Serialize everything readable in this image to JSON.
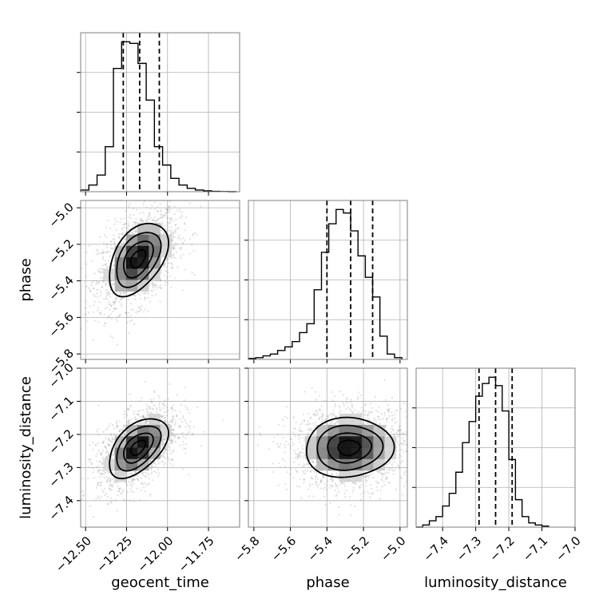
{
  "chart_data": {
    "type": "corner",
    "parameters": [
      "geocent_time",
      "phase",
      "luminosity_distance"
    ],
    "axes": {
      "geocent_time": {
        "label": "geocent_time",
        "range": [
          -12.53,
          -11.56
        ],
        "ticks": [
          -12.5,
          -12.25,
          -12.0,
          -11.75
        ],
        "tick_labels": [
          "−12.50",
          "−12.25",
          "−12.00",
          "−11.75"
        ]
      },
      "phase": {
        "label": "phase",
        "range": [
          -5.83,
          -4.96
        ],
        "ticks": [
          -5.8,
          -5.6,
          -5.4,
          -5.2,
          -5.0
        ],
        "tick_labels": [
          "−5.8",
          "−5.6",
          "−5.4",
          "−5.2",
          "−5.0"
        ]
      },
      "luminosity_distance": {
        "label": "luminosity_distance",
        "range": [
          -7.48,
          -7.0
        ],
        "ticks": [
          -7.4,
          -7.3,
          -7.2,
          -7.1,
          -7.0
        ],
        "tick_labels": [
          "−7.4",
          "−7.3",
          "−7.2",
          "−7.1",
          "−7.0"
        ]
      }
    },
    "histograms": [
      {
        "param": "geocent_time",
        "edges": [
          -12.53,
          -12.48,
          -12.43,
          -12.38,
          -12.33,
          -12.28,
          -12.23,
          -12.18,
          -12.13,
          -12.08,
          -12.03,
          -11.98,
          -11.93,
          -11.88,
          -11.83,
          -11.78,
          -11.73,
          -11.68,
          -11.63,
          -11.58
        ],
        "counts": [
          1,
          4,
          10,
          27,
          74,
          90,
          89,
          77,
          55,
          27,
          16,
          8,
          4,
          2,
          1,
          0.5,
          0.2,
          0.1,
          0
        ],
        "quantiles": [
          -12.27,
          -12.17,
          -12.05
        ]
      },
      {
        "param": "phase",
        "edges": [
          -5.83,
          -5.79,
          -5.75,
          -5.71,
          -5.67,
          -5.63,
          -5.59,
          -5.55,
          -5.51,
          -5.47,
          -5.43,
          -5.39,
          -5.35,
          -5.31,
          -5.27,
          -5.23,
          -5.19,
          -5.15,
          -5.11,
          -5.07,
          -5.03,
          -4.99
        ],
        "counts": [
          0.5,
          1,
          2,
          3,
          5,
          7,
          10,
          15,
          20,
          39,
          60,
          76,
          84,
          82,
          72,
          58,
          46,
          35,
          13,
          3,
          1
        ],
        "quantiles": [
          -5.4,
          -5.27,
          -5.15
        ]
      },
      {
        "param": "luminosity_distance",
        "edges": [
          -7.48,
          -7.46,
          -7.44,
          -7.42,
          -7.4,
          -7.38,
          -7.36,
          -7.34,
          -7.32,
          -7.3,
          -7.28,
          -7.26,
          -7.24,
          -7.22,
          -7.2,
          -7.18,
          -7.16,
          -7.14,
          -7.12,
          -7.1,
          -7.08
        ],
        "counts": [
          0,
          1,
          3,
          5,
          10,
          16,
          26,
          40,
          50,
          62,
          68,
          71,
          67,
          55,
          32,
          13,
          5,
          2,
          1,
          0.5
        ],
        "quantiles": [
          -7.29,
          -7.24,
          -7.19
        ]
      }
    ],
    "joint": [
      {
        "x": "geocent_time",
        "y": "phase",
        "mean": [
          -12.18,
          -5.28
        ],
        "sd": [
          0.09,
          0.1
        ],
        "rho": 0.45,
        "contour_levels": [
          0.5,
          1.0,
          1.5,
          2.0
        ]
      },
      {
        "x": "geocent_time",
        "y": "luminosity_distance",
        "mean": [
          -12.18,
          -7.24
        ],
        "sd": [
          0.09,
          0.045
        ],
        "rho": 0.5,
        "contour_levels": [
          0.5,
          1.0,
          1.5,
          2.0
        ]
      },
      {
        "x": "phase",
        "y": "luminosity_distance",
        "mean": [
          -5.28,
          -7.24
        ],
        "sd": [
          0.12,
          0.045
        ],
        "rho": 0.05,
        "contour_levels": [
          0.5,
          1.0,
          1.5,
          2.0
        ]
      }
    ],
    "grid": true
  }
}
